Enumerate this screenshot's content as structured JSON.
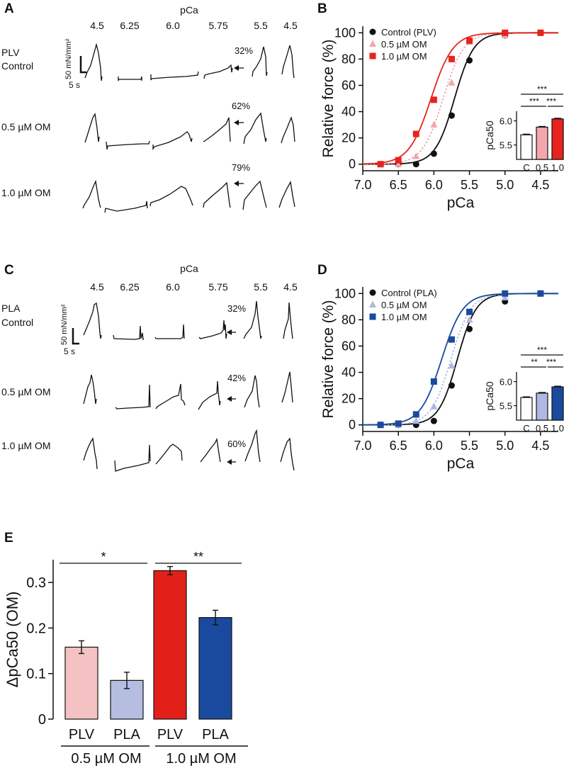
{
  "panels": {
    "A": "A",
    "B": "B",
    "C": "C",
    "D": "D",
    "E": "E"
  },
  "colors": {
    "control": "#111111",
    "plv_05": "#f4a6ad",
    "plv_10": "#e8231d",
    "pla_05": "#aeb8e0",
    "pla_10": "#1a4a9e",
    "e_plv_05": "#f5c2c3",
    "e_pla_05": "#b5bde0",
    "e_plv_10": "#e31f1a",
    "e_pla_10": "#1a4a9e"
  },
  "traces_A": {
    "pca_header": "pCa",
    "pca_labels": [
      "4.5",
      "6.25",
      "6.0",
      "5.75",
      "5.5",
      "4.5"
    ],
    "row_labels": [
      "PLV",
      "Control",
      "0.5 µM OM",
      "1.0 µM OM"
    ],
    "percents": [
      "32%",
      "62%",
      "79%"
    ],
    "scale_force": "50 mN/mm²",
    "scale_time": "5 s"
  },
  "traces_C": {
    "pca_header": "pCa",
    "pca_labels": [
      "4.5",
      "6.25",
      "6.0",
      "5.75",
      "5.5",
      "4.5"
    ],
    "row_labels": [
      "PLA",
      "Control",
      "0.5 µM OM",
      "1.0 µM OM"
    ],
    "percents": [
      "32%",
      "42%",
      "60%"
    ],
    "scale_force": "50 mN/mm²",
    "scale_time": "5 s"
  },
  "chart_data": [
    {
      "panel": "B",
      "type": "scatter",
      "xlabel": "pCa",
      "ylabel": "Relative force (%)",
      "xlim": [
        7.0,
        4.25
      ],
      "ylim": [
        -5,
        105
      ],
      "xticks": [
        "7.0",
        "6.5",
        "6.0",
        "5.5",
        "5.0",
        "4.5"
      ],
      "yticks": [
        "0",
        "20",
        "40",
        "60",
        "80",
        "100"
      ],
      "series": [
        {
          "name": "Control (PLV)",
          "marker": "circle",
          "line": "solid",
          "pca50": 5.71,
          "hill": 3.2,
          "x": [
            6.75,
            6.5,
            6.25,
            6.0,
            5.75,
            5.5,
            5.0,
            4.5
          ],
          "y": [
            0,
            0,
            0,
            8,
            37,
            79,
            98,
            100
          ]
        },
        {
          "name": "0.5 µM OM",
          "marker": "triangle",
          "line": "dotted",
          "pca50": 5.87,
          "hill": 3.0,
          "x": [
            6.75,
            6.5,
            6.25,
            6.0,
            5.75,
            5.5,
            5.0,
            4.5
          ],
          "y": [
            0,
            0,
            6,
            30,
            62,
            93,
            98,
            100
          ]
        },
        {
          "name": "1.0 µM OM",
          "marker": "square",
          "line": "solid",
          "pca50": 6.04,
          "hill": 2.8,
          "x": [
            6.75,
            6.5,
            6.25,
            6.0,
            5.75,
            5.5,
            5.0,
            4.5
          ],
          "y": [
            0,
            3,
            23,
            49,
            80,
            94,
            100,
            100
          ]
        }
      ],
      "inset": {
        "ylabel": "pCa50",
        "yticks": [
          "5.5",
          "6.0"
        ],
        "categories": [
          "C",
          "0.5",
          "1.0"
        ],
        "values": [
          5.71,
          5.87,
          6.04
        ],
        "ylim": [
          5.2,
          6.2
        ],
        "significance": [
          "***",
          "***",
          "***"
        ]
      }
    },
    {
      "panel": "D",
      "type": "scatter",
      "xlabel": "pCa",
      "ylabel": "Relative force (%)",
      "xlim": [
        7.0,
        4.25
      ],
      "ylim": [
        -5,
        105
      ],
      "xticks": [
        "7.0",
        "6.5",
        "6.0",
        "5.5",
        "5.0",
        "4.5"
      ],
      "yticks": [
        "0",
        "20",
        "40",
        "60",
        "80",
        "100"
      ],
      "series": [
        {
          "name": "Control (PLA)",
          "marker": "circle",
          "line": "solid",
          "pca50": 5.67,
          "hill": 3.3,
          "x": [
            6.75,
            6.5,
            6.25,
            6.0,
            5.75,
            5.5,
            5.0,
            4.5
          ],
          "y": [
            0,
            0,
            0,
            3,
            30,
            73,
            94,
            100
          ]
        },
        {
          "name": "0.5 µM OM",
          "marker": "triangle",
          "line": "dotted",
          "pca50": 5.76,
          "hill": 3.1,
          "x": [
            6.75,
            6.5,
            6.25,
            6.0,
            5.75,
            5.5,
            5.0,
            4.5
          ],
          "y": [
            0,
            0,
            3,
            14,
            45,
            80,
            97,
            100
          ]
        },
        {
          "name": "1.0 µM OM",
          "marker": "square",
          "line": "solid",
          "pca50": 5.89,
          "hill": 2.9,
          "x": [
            6.75,
            6.5,
            6.25,
            6.0,
            5.75,
            5.5,
            5.0,
            4.5
          ],
          "y": [
            0,
            1,
            8,
            33,
            65,
            86,
            100,
            100
          ]
        }
      ],
      "inset": {
        "ylabel": "pCa50",
        "yticks": [
          "5.5",
          "6.0"
        ],
        "categories": [
          "C",
          "0.5",
          "1.0"
        ],
        "values": [
          5.67,
          5.76,
          5.89
        ],
        "ylim": [
          5.2,
          6.2
        ],
        "significance": [
          "***",
          "**",
          "***"
        ]
      }
    },
    {
      "panel": "E",
      "type": "bar",
      "ylabel": "ΔpCa50 (OM)",
      "ylim": [
        0,
        0.35
      ],
      "yticks": [
        "0",
        "0.1",
        "0.2",
        "0.3"
      ],
      "categories": [
        "PLV",
        "PLA",
        "PLV",
        "PLA"
      ],
      "values": [
        0.158,
        0.085,
        0.326,
        0.223
      ],
      "errors": [
        0.014,
        0.018,
        0.009,
        0.016
      ],
      "groups": [
        "0.5 µM OM",
        "1.0 µM OM"
      ],
      "significance": [
        "*",
        "**"
      ]
    }
  ]
}
